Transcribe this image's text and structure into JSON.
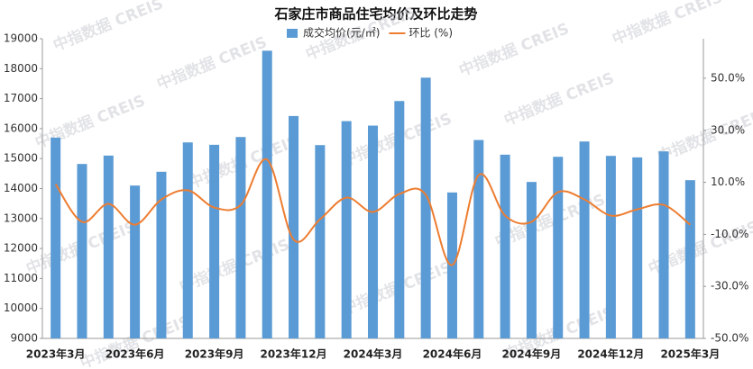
{
  "chart_data": {
    "type": "bar-line",
    "title": "石家庄市商品住宅均价及环比走势",
    "watermark": "中指数据 CREIS",
    "categories": [
      "2023年3月",
      null,
      null,
      "2023年6月",
      null,
      null,
      "2023年9月",
      null,
      null,
      "2023年12月",
      null,
      null,
      "2024年3月",
      null,
      null,
      "2024年6月",
      null,
      null,
      "2024年9月",
      null,
      null,
      "2024年12月",
      null,
      null,
      "2025年3月"
    ],
    "series": [
      {
        "name": "成交均价(元/㎡)",
        "type": "bar",
        "color": "#5b9bd5",
        "values": [
          15700,
          14820,
          15100,
          14100,
          14560,
          15540,
          15460,
          15720,
          18600,
          16420,
          15450,
          16250,
          16100,
          16920,
          17700,
          13870,
          15620,
          15130,
          14220,
          15060,
          15570,
          15090,
          15040,
          15240,
          14280
        ]
      },
      {
        "name": "环比 (%)",
        "type": "line",
        "axis": "y2",
        "color": "#ed7d31",
        "values": [
          9.3,
          -5.2,
          1.7,
          -6.3,
          3.4,
          6.9,
          0.3,
          1.3,
          18.7,
          -12,
          -4.2,
          4.1,
          -1.4,
          5.5,
          5.2,
          -21.8,
          12.8,
          -2.8,
          -5.2,
          6.2,
          3.4,
          -2.8,
          -0.4,
          1.3,
          -6.3
        ]
      }
    ],
    "ylim": [
      9000,
      19000
    ],
    "yticks": [
      9000,
      10000,
      11000,
      12000,
      13000,
      14000,
      15000,
      16000,
      17000,
      18000,
      19000
    ],
    "y2lim": [
      -50,
      65.2
    ],
    "y2ticks": [
      {
        "value": -50,
        "label": "-50.0%"
      },
      {
        "value": -30,
        "label": "-30.0%"
      },
      {
        "value": -10,
        "label": "-10.0%"
      },
      {
        "value": 10,
        "label": "10.0%"
      },
      {
        "value": 30,
        "label": "30.0%"
      },
      {
        "value": 50,
        "label": "50.0%"
      }
    ],
    "legend": "top"
  }
}
